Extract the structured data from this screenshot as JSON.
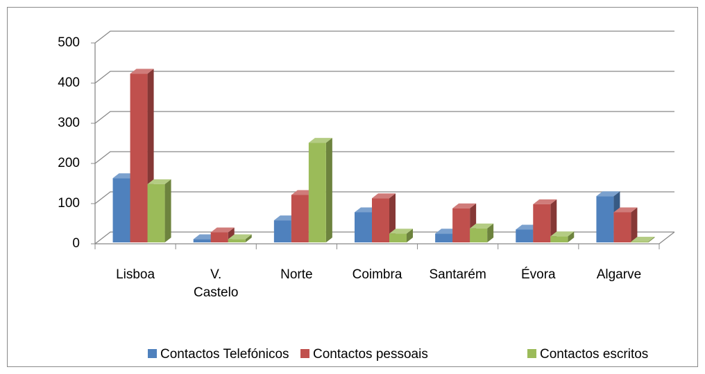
{
  "chart_data": {
    "type": "bar3d",
    "categories": [
      "Lisboa",
      "V. Castelo",
      "Norte",
      "Coimbra",
      "Santarém",
      "Évora",
      "Algarve"
    ],
    "series": [
      {
        "name": "Contactos Telefónicos",
        "color": "#4f81bd",
        "values": [
          160,
          8,
          55,
          75,
          22,
          32,
          115
        ]
      },
      {
        "name": "Contactos pessoais",
        "color": "#c0504d",
        "values": [
          420,
          25,
          118,
          110,
          85,
          95,
          75
        ]
      },
      {
        "name": "Contactos escritos",
        "color": "#9bbb59",
        "values": [
          145,
          8,
          248,
          22,
          35,
          15,
          2
        ]
      }
    ],
    "ylim": [
      0,
      500
    ],
    "yticks": [
      0,
      100,
      200,
      300,
      400,
      500
    ],
    "grid": true,
    "legend": "bottom"
  }
}
